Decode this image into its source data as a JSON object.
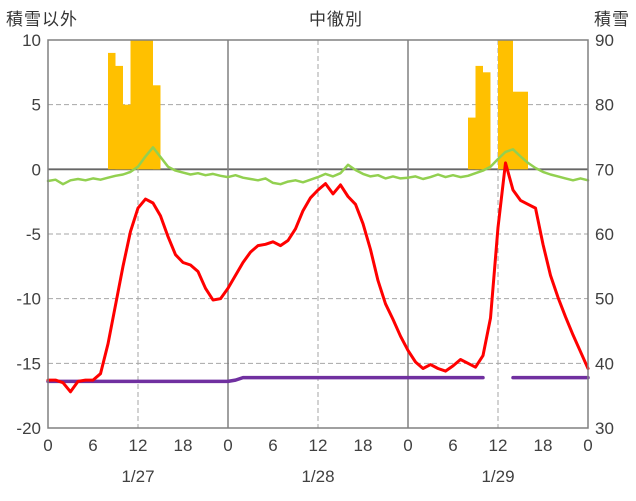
{
  "chart_data": {
    "type": "line+bar",
    "title": "中徹別",
    "left_axis": {
      "title": "積雪以外",
      "min": -20,
      "max": 10,
      "ticks": [
        10,
        5,
        0,
        -5,
        -10,
        -15,
        -20
      ]
    },
    "right_axis": {
      "title": "積雪",
      "min": 30,
      "max": 90,
      "ticks": [
        90,
        80,
        70,
        60,
        50,
        40,
        30
      ]
    },
    "x_hours_total": 72,
    "x_tick_interval": 6,
    "x_tick_labels": [
      "0",
      "6",
      "12",
      "18",
      "0",
      "6",
      "12",
      "18",
      "0",
      "6",
      "12",
      "18",
      "0"
    ],
    "date_labels": [
      {
        "hour": 12,
        "label": "1/27"
      },
      {
        "hour": 36,
        "label": "1/28"
      },
      {
        "hour": 60,
        "label": "1/29"
      }
    ],
    "grid": {
      "h_dashed_values": [
        5,
        -5,
        -10,
        -15
      ],
      "h_zero_value": 0,
      "v_dashed_hours": [
        12,
        36,
        60
      ],
      "v_solid_hours": [
        24,
        48
      ]
    },
    "colors": {
      "bars": "#FFC000",
      "red_line": "#FF0000",
      "green_line": "#92D050",
      "purple_line": "#7030A0",
      "grid": "#A6A6A6",
      "axis": "#808080",
      "zero_line": "#666666",
      "text": "#404040"
    },
    "bars": [
      {
        "hour": 8,
        "value": 9
      },
      {
        "hour": 9,
        "value": 8
      },
      {
        "hour": 10,
        "value": 5
      },
      {
        "hour": 11,
        "value": 10
      },
      {
        "hour": 12,
        "value": 10
      },
      {
        "hour": 13,
        "value": 10
      },
      {
        "hour": 14,
        "value": 6.5
      },
      {
        "hour": 56,
        "value": 4
      },
      {
        "hour": 57,
        "value": 8
      },
      {
        "hour": 58,
        "value": 7.5
      },
      {
        "hour": 60,
        "value": 10
      },
      {
        "hour": 61,
        "value": 10
      },
      {
        "hour": 62,
        "value": 6
      },
      {
        "hour": 63,
        "value": 6
      }
    ],
    "series": [
      {
        "name": "purple-line",
        "axis": "left",
        "color_key": "purple_line",
        "width": 3.5,
        "values": [
          -16.4,
          -16.4,
          -16.4,
          -16.4,
          -16.4,
          -16.4,
          -16.4,
          -16.4,
          -16.4,
          -16.4,
          -16.4,
          -16.4,
          -16.4,
          -16.4,
          -16.4,
          -16.4,
          -16.4,
          -16.4,
          -16.4,
          -16.4,
          -16.4,
          -16.4,
          -16.4,
          -16.4,
          -16.4,
          -16.3,
          -16.1,
          -16.1,
          -16.1,
          -16.1,
          -16.1,
          -16.1,
          -16.1,
          -16.1,
          -16.1,
          -16.1,
          -16.1,
          -16.1,
          -16.1,
          -16.1,
          -16.1,
          -16.1,
          -16.1,
          -16.1,
          -16.1,
          -16.1,
          -16.1,
          -16.1,
          -16.1,
          -16.1,
          -16.1,
          -16.1,
          -16.1,
          -16.1,
          -16.1,
          -16.1,
          -16.1,
          -16.1,
          -16.1,
          null,
          null,
          null,
          -16.1,
          -16.1,
          -16.1,
          -16.1,
          -16.1,
          -16.1,
          -16.1,
          -16.1,
          -16.1,
          -16.1,
          -16.1
        ]
      },
      {
        "name": "green-line",
        "axis": "right",
        "color_key": "green_line",
        "width": 2.5,
        "values": [
          68.2,
          68.4,
          67.7,
          68.3,
          68.5,
          68.3,
          68.6,
          68.4,
          68.7,
          69.0,
          69.2,
          69.6,
          70.4,
          72.0,
          73.4,
          71.9,
          70.4,
          69.8,
          69.5,
          69.2,
          69.4,
          69.1,
          69.3,
          69.0,
          68.8,
          69.1,
          68.7,
          68.5,
          68.3,
          68.6,
          67.9,
          67.7,
          68.1,
          68.3,
          68.0,
          68.4,
          68.8,
          69.3,
          68.9,
          69.4,
          70.7,
          69.9,
          69.3,
          68.9,
          69.1,
          68.6,
          68.9,
          68.6,
          68.7,
          68.9,
          68.5,
          68.8,
          69.2,
          68.8,
          69.1,
          68.8,
          69.0,
          69.4,
          69.8,
          70.4,
          71.6,
          72.7,
          73.1,
          72.0,
          71.0,
          70.2,
          69.6,
          69.2,
          68.9,
          68.6,
          68.3,
          68.6,
          68.3
        ]
      },
      {
        "name": "red-line",
        "axis": "left",
        "color_key": "red_line",
        "width": 3,
        "values": [
          -16.3,
          -16.3,
          -16.5,
          -17.2,
          -16.4,
          -16.3,
          -16.3,
          -15.8,
          -13.5,
          -10.5,
          -7.5,
          -4.8,
          -3.0,
          -2.3,
          -2.6,
          -3.6,
          -5.2,
          -6.6,
          -7.2,
          -7.4,
          -7.9,
          -9.2,
          -10.1,
          -10.0,
          -9.2,
          -8.2,
          -7.2,
          -6.4,
          -5.9,
          -5.8,
          -5.6,
          -5.9,
          -5.5,
          -4.6,
          -3.2,
          -2.2,
          -1.6,
          -1.1,
          -1.9,
          -1.2,
          -2.1,
          -2.7,
          -4.2,
          -6.2,
          -8.6,
          -10.4,
          -11.6,
          -12.9,
          -14.0,
          -14.9,
          -15.4,
          -15.1,
          -15.4,
          -15.6,
          -15.2,
          -14.7,
          -15.0,
          -15.3,
          -14.4,
          -11.5,
          -4.5,
          0.5,
          -1.6,
          -2.4,
          -2.7,
          -3.0,
          -5.8,
          -8.2,
          -9.9,
          -11.4,
          -12.8,
          -14.1,
          -15.4
        ]
      }
    ]
  }
}
